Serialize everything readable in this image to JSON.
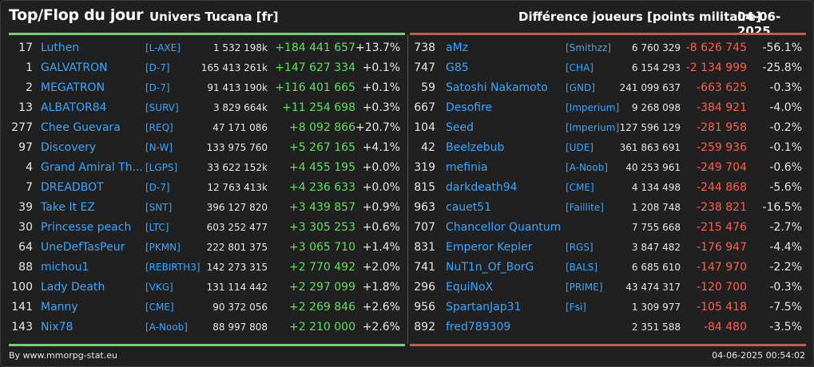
{
  "header": {
    "title": "Top/Flop du jour",
    "universe": "Univers Tucana [fr]",
    "metric": "Différence joueurs [points militaire]",
    "date": "04-06-2025"
  },
  "colors": {
    "up": "#5fe05f",
    "down": "#ff5e4d",
    "link": "#39a7ff",
    "background": "#202020"
  },
  "top": [
    {
      "rank": "17",
      "name": "Luthen",
      "alliance": "[L-AXE]",
      "points": "1 532 198k",
      "diff": "+184 441 657",
      "pct": "+13.7%"
    },
    {
      "rank": "1",
      "name": "GALVATRON",
      "alliance": "[D-7]",
      "points": "165 413 261k",
      "diff": "+147 627 334",
      "pct": "+0.1%"
    },
    {
      "rank": "2",
      "name": "MEGATRON",
      "alliance": "[D-7]",
      "points": "91 413 190k",
      "diff": "+116 401 665",
      "pct": "+0.1%"
    },
    {
      "rank": "13",
      "name": "ALBATOR84",
      "alliance": "[SURV]",
      "points": "3 829 664k",
      "diff": "+11 254 698",
      "pct": "+0.3%"
    },
    {
      "rank": "277",
      "name": "Chee Guevara",
      "alliance": "[REQ]",
      "points": "47 171 086",
      "diff": "+8 092 866",
      "pct": "+20.7%"
    },
    {
      "rank": "97",
      "name": "Discovery",
      "alliance": "[N-W]",
      "points": "133 975 760",
      "diff": "+5 267 165",
      "pct": "+4.1%"
    },
    {
      "rank": "4",
      "name": "Grand Amiral Th...",
      "alliance": "[LGPS]",
      "points": "33 622 152k",
      "diff": "+4 455 195",
      "pct": "+0.0%"
    },
    {
      "rank": "7",
      "name": "DREADBOT",
      "alliance": "[D-7]",
      "points": "12 763 413k",
      "diff": "+4 236 633",
      "pct": "+0.0%"
    },
    {
      "rank": "39",
      "name": "Take It EZ",
      "alliance": "[SNT]",
      "points": "396 127 820",
      "diff": "+3 439 857",
      "pct": "+0.9%"
    },
    {
      "rank": "30",
      "name": "Princesse peach",
      "alliance": "[LTC]",
      "points": "603 252 477",
      "diff": "+3 305 253",
      "pct": "+0.6%"
    },
    {
      "rank": "64",
      "name": "UneDefTasPeur",
      "alliance": "[PKMN]",
      "points": "222 801 375",
      "diff": "+3 065 710",
      "pct": "+1.4%"
    },
    {
      "rank": "88",
      "name": "michou1",
      "alliance": "[REBIRTH3]",
      "points": "142 273 315",
      "diff": "+2 770 492",
      "pct": "+2.0%"
    },
    {
      "rank": "100",
      "name": "Lady Death",
      "alliance": "[VKG]",
      "points": "131 114 442",
      "diff": "+2 297 099",
      "pct": "+1.8%"
    },
    {
      "rank": "141",
      "name": "Manny",
      "alliance": "[CME]",
      "points": "90 372 056",
      "diff": "+2 269 846",
      "pct": "+2.6%"
    },
    {
      "rank": "143",
      "name": "Nix78",
      "alliance": "[A-Noob]",
      "points": "88 997 808",
      "diff": "+2 210 000",
      "pct": "+2.6%"
    }
  ],
  "flop": [
    {
      "rank": "738",
      "name": "aMz",
      "alliance": "[Smithzz]",
      "points": "6 760 329",
      "diff": "-8 626 745",
      "pct": "-56.1%"
    },
    {
      "rank": "747",
      "name": "G85",
      "alliance": "[CHA]",
      "points": "6 154 293",
      "diff": "-2 134 999",
      "pct": "-25.8%"
    },
    {
      "rank": "59",
      "name": "Satoshi Nakamoto",
      "alliance": "[GND]",
      "points": "241 099 637",
      "diff": "-663 625",
      "pct": "-0.3%"
    },
    {
      "rank": "667",
      "name": "Desofire",
      "alliance": "[Imperium]",
      "points": "9 268 098",
      "diff": "-384 921",
      "pct": "-4.0%"
    },
    {
      "rank": "104",
      "name": "Seed",
      "alliance": "[Imperium]",
      "points": "127 596 129",
      "diff": "-281 958",
      "pct": "-0.2%"
    },
    {
      "rank": "42",
      "name": "Beelzebub",
      "alliance": "[UDE]",
      "points": "361 863 691",
      "diff": "-259 936",
      "pct": "-0.1%"
    },
    {
      "rank": "319",
      "name": "mefinia",
      "alliance": "[A-Noob]",
      "points": "40 253 961",
      "diff": "-249 704",
      "pct": "-0.6%"
    },
    {
      "rank": "815",
      "name": "darkdeath94",
      "alliance": "[CME]",
      "points": "4 134 498",
      "diff": "-244 868",
      "pct": "-5.6%"
    },
    {
      "rank": "963",
      "name": "cauet51",
      "alliance": "[Faillite]",
      "points": "1 208 748",
      "diff": "-238 821",
      "pct": "-16.5%"
    },
    {
      "rank": "707",
      "name": "Chancellor Quantum",
      "alliance": "",
      "points": "7 755 668",
      "diff": "-215 476",
      "pct": "-2.7%"
    },
    {
      "rank": "831",
      "name": "Emperor Kepler",
      "alliance": "[RGS]",
      "points": "3 847 482",
      "diff": "-176 947",
      "pct": "-4.4%"
    },
    {
      "rank": "741",
      "name": "NuT1n_Of_BorG",
      "alliance": "[BALS]",
      "points": "6 685 610",
      "diff": "-147 970",
      "pct": "-2.2%"
    },
    {
      "rank": "296",
      "name": "EquiNoX",
      "alliance": "[PRIME]",
      "points": "43 474 317",
      "diff": "-120 700",
      "pct": "-0.3%"
    },
    {
      "rank": "956",
      "name": "SpartanJap31",
      "alliance": "[Fsi]",
      "points": "1 309 977",
      "diff": "-105 418",
      "pct": "-7.5%"
    },
    {
      "rank": "892",
      "name": "fred789309",
      "alliance": "",
      "points": "2 351 588",
      "diff": "-84 480",
      "pct": "-3.5%"
    }
  ],
  "footer": {
    "source": "By www.mmorpg-stat.eu",
    "timestamp": "04-06-2025 00:54:02"
  }
}
